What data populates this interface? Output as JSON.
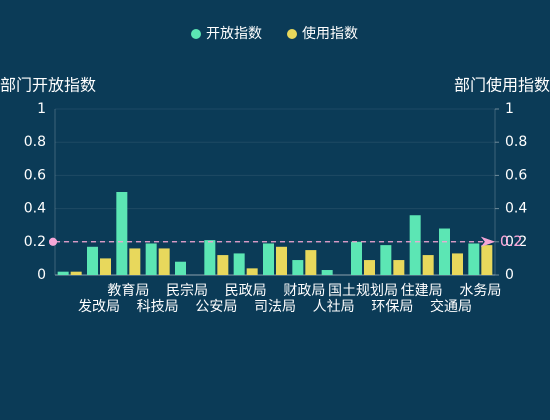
{
  "chart_data": {
    "type": "bar",
    "legend": [
      "开放指数",
      "使用指数"
    ],
    "legend_position": "top",
    "y_axis_name": "部门开放指数",
    "y2_axis_name": "部门使用指数",
    "categories": [
      null,
      "发改局",
      "教育局",
      "科技局",
      "民宗局",
      "公安局",
      "民政局",
      "司法局",
      "财政局",
      "人社局",
      "国土规划局",
      "环保局",
      "住建局",
      "交通局",
      "水务局"
    ],
    "series": [
      {
        "name": "开放指数",
        "color": "#5ce6b4",
        "values": [
          0.02,
          0.17,
          0.5,
          0.19,
          0.08,
          0.21,
          0.13,
          0.19,
          0.09,
          0.03,
          0.2,
          0.18,
          0.36,
          0.28,
          0.19
        ],
        "mark_line": 0.2
      },
      {
        "name": "使用指数",
        "color": "#e8d85c",
        "axis": "y2",
        "values": [
          0.02,
          0.1,
          0.16,
          0.16,
          0,
          0.12,
          0.04,
          0.17,
          0.15,
          0,
          0.09,
          0.09,
          0.12,
          0.13,
          0.18
        ],
        "mark_line": 0.2
      }
    ],
    "ylim": [
      0,
      1
    ],
    "yticks": [
      0,
      0.2,
      0.4,
      0.6,
      0.8,
      1
    ],
    "y2lim": [
      0,
      1
    ],
    "y2ticks": [
      0,
      0.2,
      0.4,
      0.6,
      0.8,
      1
    ],
    "grid": true
  }
}
